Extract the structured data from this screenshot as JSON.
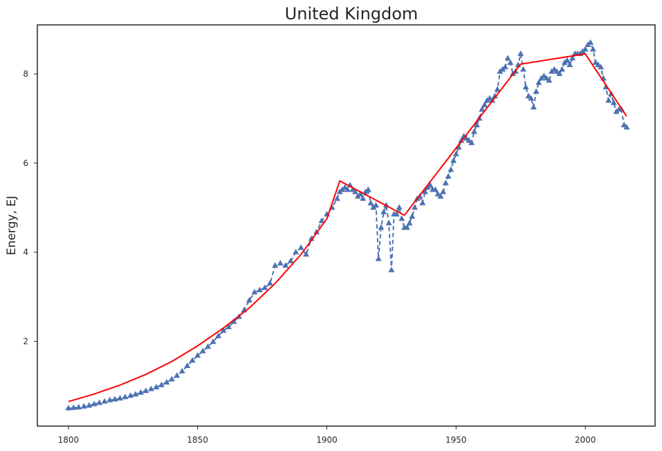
{
  "chart_data": {
    "type": "line",
    "title": "United Kingdom",
    "xlabel": "",
    "ylabel": "Energy, EJ",
    "xlim": [
      1788,
      2027
    ],
    "ylim": [
      0.1,
      9.1
    ],
    "xticks": [
      1800,
      1850,
      1900,
      1950,
      2000
    ],
    "yticks": [
      2,
      4,
      6,
      8
    ],
    "grid": false,
    "legend": "none",
    "colors": {
      "data": "#4c72b0",
      "fit": "#ff0000",
      "axes": "#262626"
    },
    "series": [
      {
        "style": "dashed-triangles",
        "x": [
          1800,
          1802,
          1804,
          1806,
          1808,
          1810,
          1812,
          1814,
          1816,
          1818,
          1820,
          1822,
          1824,
          1826,
          1828,
          1830,
          1832,
          1834,
          1836,
          1838,
          1840,
          1842,
          1844,
          1846,
          1848,
          1850,
          1852,
          1854,
          1856,
          1858,
          1860,
          1862,
          1864,
          1866,
          1868,
          1870,
          1872,
          1874,
          1876,
          1878,
          1880,
          1882,
          1884,
          1886,
          1888,
          1890,
          1892,
          1894,
          1896,
          1898,
          1900,
          1902,
          1904,
          1905,
          1906,
          1907,
          1908,
          1909,
          1910,
          1911,
          1912,
          1913,
          1914,
          1915,
          1916,
          1917,
          1918,
          1919,
          1920,
          1921,
          1922,
          1923,
          1924,
          1925,
          1926,
          1927,
          1928,
          1929,
          1930,
          1931,
          1932,
          1933,
          1934,
          1935,
          1936,
          1937,
          1938,
          1939,
          1940,
          1941,
          1942,
          1943,
          1944,
          1945,
          1946,
          1947,
          1948,
          1949,
          1950,
          1951,
          1952,
          1953,
          1954,
          1955,
          1956,
          1957,
          1958,
          1959,
          1960,
          1961,
          1962,
          1963,
          1964,
          1965,
          1966,
          1967,
          1968,
          1969,
          1970,
          1971,
          1972,
          1973,
          1974,
          1975,
          1976,
          1977,
          1978,
          1979,
          1980,
          1981,
          1982,
          1983,
          1984,
          1985,
          1986,
          1987,
          1988,
          1989,
          1990,
          1991,
          1992,
          1993,
          1994,
          1995,
          1996,
          1997,
          1998,
          1999,
          2000,
          2001,
          2002,
          2003,
          2004,
          2005,
          2006,
          2007,
          2008,
          2009,
          2010,
          2011,
          2012,
          2013,
          2014,
          2015,
          2016
        ],
        "y": [
          0.5,
          0.51,
          0.52,
          0.54,
          0.56,
          0.59,
          0.62,
          0.65,
          0.68,
          0.7,
          0.72,
          0.75,
          0.78,
          0.81,
          0.85,
          0.89,
          0.93,
          0.97,
          1.02,
          1.08,
          1.15,
          1.23,
          1.33,
          1.45,
          1.57,
          1.68,
          1.78,
          1.88,
          1.99,
          2.12,
          2.24,
          2.32,
          2.44,
          2.55,
          2.7,
          2.92,
          3.1,
          3.15,
          3.2,
          3.3,
          3.7,
          3.75,
          3.7,
          3.8,
          4.0,
          4.1,
          3.95,
          4.3,
          4.45,
          4.7,
          4.85,
          5.0,
          5.2,
          5.35,
          5.4,
          5.45,
          5.4,
          5.5,
          5.4,
          5.35,
          5.25,
          5.3,
          5.2,
          5.35,
          5.4,
          5.1,
          5.0,
          5.05,
          3.85,
          4.55,
          4.9,
          5.05,
          4.65,
          3.6,
          4.85,
          4.85,
          5.0,
          4.75,
          4.55,
          4.55,
          4.65,
          4.8,
          5.0,
          5.2,
          5.25,
          5.1,
          5.35,
          5.45,
          5.5,
          5.4,
          5.4,
          5.3,
          5.25,
          5.35,
          5.55,
          5.7,
          5.85,
          6.05,
          6.2,
          6.35,
          6.5,
          6.6,
          6.55,
          6.5,
          6.45,
          6.7,
          6.85,
          7.0,
          7.2,
          7.3,
          7.4,
          7.45,
          7.4,
          7.5,
          7.65,
          8.05,
          8.1,
          8.15,
          8.35,
          8.25,
          8.0,
          8.05,
          8.2,
          8.45,
          8.1,
          7.7,
          7.5,
          7.45,
          7.25,
          7.6,
          7.8,
          7.9,
          7.95,
          7.9,
          7.85,
          8.05,
          8.1,
          8.05,
          8.0,
          8.1,
          8.25,
          8.3,
          8.2,
          8.35,
          8.45,
          8.45,
          8.45,
          8.5,
          8.55,
          8.65,
          8.7,
          8.55,
          8.25,
          8.2,
          8.15,
          7.9,
          7.7,
          7.4,
          7.55,
          7.35,
          7.15,
          7.2,
          7.2,
          6.85,
          6.8
        ]
      },
      {
        "style": "solid",
        "x": [
          1800,
          1810,
          1820,
          1830,
          1840,
          1850,
          1860,
          1870,
          1880,
          1890,
          1900,
          1905,
          1930,
          1975,
          2000,
          2016
        ],
        "y": [
          0.65,
          0.82,
          1.02,
          1.26,
          1.55,
          1.9,
          2.3,
          2.75,
          3.3,
          3.95,
          4.75,
          5.6,
          4.83,
          8.22,
          8.45,
          7.05
        ]
      }
    ]
  }
}
